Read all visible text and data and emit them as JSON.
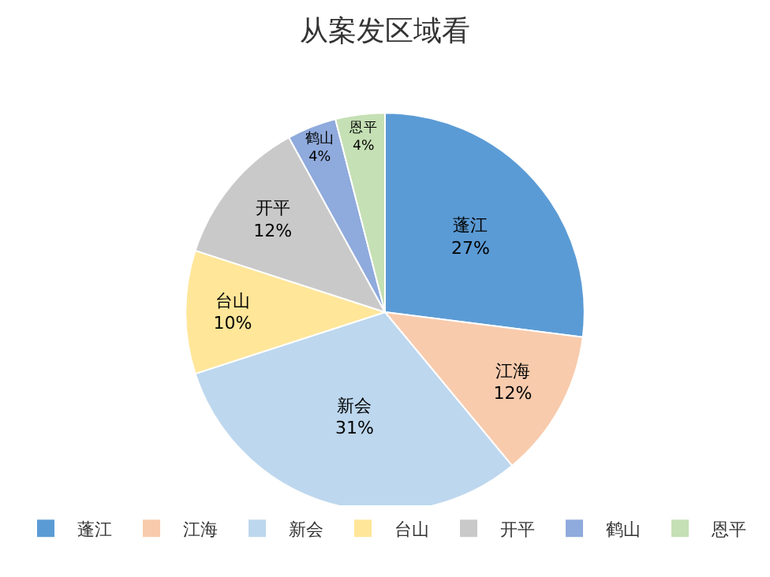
{
  "chart_data": {
    "type": "pie",
    "title": "从案发区域看",
    "categories": [
      "蓬江",
      "江海",
      "新会",
      "台山",
      "开平",
      "鹤山",
      "恩平"
    ],
    "values": [
      27,
      12,
      31,
      10,
      12,
      4,
      4
    ],
    "value_labels": [
      "27%",
      "12%",
      "31%",
      "10%",
      "12%",
      "4%",
      "4%"
    ],
    "colors": [
      "#5b9bd5",
      "#f8cbad",
      "#bdd7ee",
      "#ffe699",
      "#c9c9c9",
      "#8faadc",
      "#c5e0b4"
    ],
    "legend": "bottom"
  }
}
